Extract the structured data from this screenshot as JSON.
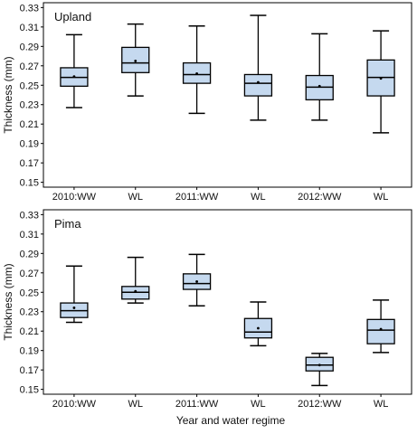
{
  "figure": {
    "xlabel": "Year and water regime",
    "box_fill": "#c5d9ef",
    "box_stroke": "#000000"
  },
  "chart_data": [
    {
      "type": "box",
      "panel_label": "Upland",
      "ylabel": "Thickness (mm)",
      "xlabel": "",
      "categories": [
        "2010:WW",
        "WL",
        "2011:WW",
        "WL",
        "2012:WW",
        "WL"
      ],
      "ylim": [
        0.145,
        0.335
      ],
      "yticks": [
        0.15,
        0.17,
        0.19,
        0.21,
        0.23,
        0.25,
        0.27,
        0.29,
        0.31,
        0.33
      ],
      "grid": false,
      "boxes": [
        {
          "min": 0.227,
          "q1": 0.249,
          "median": 0.258,
          "q3": 0.268,
          "max": 0.302,
          "mean": 0.259
        },
        {
          "min": 0.239,
          "q1": 0.263,
          "median": 0.273,
          "q3": 0.289,
          "max": 0.313,
          "mean": 0.275
        },
        {
          "min": 0.221,
          "q1": 0.252,
          "median": 0.261,
          "q3": 0.273,
          "max": 0.311,
          "mean": 0.262
        },
        {
          "min": 0.214,
          "q1": 0.239,
          "median": 0.252,
          "q3": 0.261,
          "max": 0.322,
          "mean": 0.253
        },
        {
          "min": 0.214,
          "q1": 0.235,
          "median": 0.248,
          "q3": 0.26,
          "max": 0.303,
          "mean": 0.249
        },
        {
          "min": 0.201,
          "q1": 0.239,
          "median": 0.258,
          "q3": 0.276,
          "max": 0.306,
          "mean": 0.257
        }
      ]
    },
    {
      "type": "box",
      "panel_label": "Pima",
      "ylabel": "Thickness (mm)",
      "xlabel": "Year and water regime",
      "categories": [
        "2010:WW",
        "WL",
        "2011:WW",
        "WL",
        "2012:WW",
        "WL"
      ],
      "ylim": [
        0.145,
        0.335
      ],
      "yticks": [
        0.15,
        0.17,
        0.19,
        0.21,
        0.23,
        0.25,
        0.27,
        0.29,
        0.31,
        0.33
      ],
      "grid": false,
      "boxes": [
        {
          "min": 0.219,
          "q1": 0.224,
          "median": 0.231,
          "q3": 0.239,
          "max": 0.277,
          "mean": 0.234
        },
        {
          "min": 0.239,
          "q1": 0.243,
          "median": 0.25,
          "q3": 0.256,
          "max": 0.286,
          "mean": 0.251
        },
        {
          "min": 0.236,
          "q1": 0.253,
          "median": 0.259,
          "q3": 0.269,
          "max": 0.289,
          "mean": 0.261
        },
        {
          "min": 0.195,
          "q1": 0.203,
          "median": 0.209,
          "q3": 0.223,
          "max": 0.24,
          "mean": 0.213
        },
        {
          "min": 0.154,
          "q1": 0.169,
          "median": 0.175,
          "q3": 0.183,
          "max": 0.187,
          "mean": 0.175
        },
        {
          "min": 0.188,
          "q1": 0.197,
          "median": 0.211,
          "q3": 0.222,
          "max": 0.242,
          "mean": 0.212
        }
      ]
    }
  ]
}
